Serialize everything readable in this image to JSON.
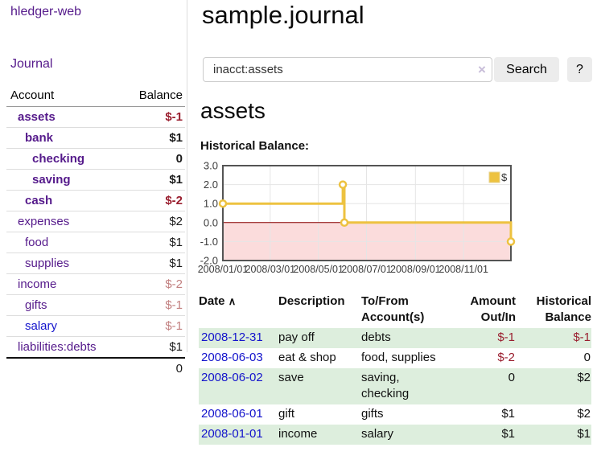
{
  "colors": {
    "link_purple": "#551a8b",
    "link_blue": "#1414cc",
    "negative_strong": "#9a1f2f",
    "negative_soft": "#c28080",
    "row_highlight_green": "#ddeedd",
    "series_yellow": "#edc240",
    "negative_region_pink": "#fbdcdc",
    "zero_line_red": "#8b0000",
    "chart_border": "#545454",
    "gridline": "#e5e5e5"
  },
  "sidebar": {
    "app_title": "hledger-web",
    "journal_link": "Journal",
    "table": {
      "headers": {
        "account": "Account",
        "balance": "Balance"
      },
      "rows": [
        {
          "name": "assets",
          "depth": 1,
          "bold": true,
          "blue": false,
          "balance": "$-1",
          "bal_class": "neg-strong"
        },
        {
          "name": "bank",
          "depth": 2,
          "bold": true,
          "blue": false,
          "balance": "$1",
          "bal_class": ""
        },
        {
          "name": "checking",
          "depth": 3,
          "bold": true,
          "blue": false,
          "balance": "0",
          "bal_class": ""
        },
        {
          "name": "saving",
          "depth": 3,
          "bold": true,
          "blue": false,
          "balance": "$1",
          "bal_class": ""
        },
        {
          "name": "cash",
          "depth": 2,
          "bold": true,
          "blue": false,
          "balance": "$-2",
          "bal_class": "neg-strong"
        },
        {
          "name": "expenses",
          "depth": 1,
          "bold": false,
          "blue": false,
          "balance": "$2",
          "bal_class": ""
        },
        {
          "name": "food",
          "depth": 2,
          "bold": false,
          "blue": false,
          "balance": "$1",
          "bal_class": ""
        },
        {
          "name": "supplies",
          "depth": 2,
          "bold": false,
          "blue": false,
          "balance": "$1",
          "bal_class": ""
        },
        {
          "name": "income",
          "depth": 1,
          "bold": false,
          "blue": false,
          "balance": "$-2",
          "bal_class": "neg-soft"
        },
        {
          "name": "gifts",
          "depth": 2,
          "bold": false,
          "blue": false,
          "balance": "$-1",
          "bal_class": "neg-soft"
        },
        {
          "name": "salary",
          "depth": 2,
          "bold": false,
          "blue": true,
          "balance": "$-1",
          "bal_class": "neg-soft"
        },
        {
          "name": "liabilities:debts",
          "depth": 1,
          "bold": false,
          "blue": false,
          "balance": "$1",
          "bal_class": ""
        }
      ],
      "total": "0"
    }
  },
  "main": {
    "title": "sample.journal",
    "search": {
      "value": "inacct:assets",
      "clear_icon": "×",
      "search_button": "Search",
      "help_button": "?"
    },
    "account_heading": "assets",
    "section_label": "Historical Balance:"
  },
  "chart_data": {
    "type": "line",
    "step": true,
    "title": "Historical Balance:",
    "series": [
      {
        "name": "$",
        "color": "#edc240",
        "points": [
          [
            "2008-01-01",
            1
          ],
          [
            "2008-06-01",
            2
          ],
          [
            "2008-06-03",
            0
          ],
          [
            "2008-12-31",
            -1
          ]
        ]
      }
    ],
    "x_range": [
      "2008-01-01",
      "2008-12-31"
    ],
    "ylim": [
      -2,
      3
    ],
    "y_ticks": [
      3,
      2,
      1,
      0,
      -1,
      -2
    ],
    "y_tick_labels": [
      "3.0",
      "2.0",
      "1.0",
      "0.0",
      "-1.0",
      "-2.0"
    ],
    "x_ticks": [
      {
        "date": "2008-01-01",
        "label": "2008/01/01"
      },
      {
        "date": "2008-03-01",
        "label": "2008/03/01"
      },
      {
        "date": "2008-05-01",
        "label": "2008/05/01"
      },
      {
        "date": "2008-07-01",
        "label": "2008/07/01"
      },
      {
        "date": "2008-09-01",
        "label": "2008/09/01"
      },
      {
        "date": "2008-11-01",
        "label": "2008/11/01"
      }
    ],
    "grid": true,
    "legend_position": "top-right",
    "negative_region": true
  },
  "register": {
    "headers": {
      "date": "Date",
      "sort_icon": "∧",
      "description": "Description",
      "account": [
        "To/From",
        "Account(s)"
      ],
      "amount": [
        "Amount",
        "Out/In"
      ],
      "balance": [
        "Historical",
        "Balance"
      ]
    },
    "rows": [
      {
        "date": "2008-12-31",
        "description": "pay off",
        "accounts": [
          "debts"
        ],
        "amount": "$-1",
        "balance": "$-1",
        "highlight": true
      },
      {
        "date": "2008-06-03",
        "description": "eat & shop",
        "accounts": [
          "food, supplies"
        ],
        "amount": "$-2",
        "balance": "0",
        "highlight": false
      },
      {
        "date": "2008-06-02",
        "description": "save",
        "accounts": [
          "saving,",
          "checking"
        ],
        "amount": "0",
        "balance": "$2",
        "highlight": true
      },
      {
        "date": "2008-06-01",
        "description": "gift",
        "accounts": [
          "gifts"
        ],
        "amount": "$1",
        "balance": "$2",
        "highlight": false
      },
      {
        "date": "2008-01-01",
        "description": "income",
        "accounts": [
          "salary"
        ],
        "amount": "$1",
        "balance": "$1",
        "highlight": true
      }
    ]
  }
}
